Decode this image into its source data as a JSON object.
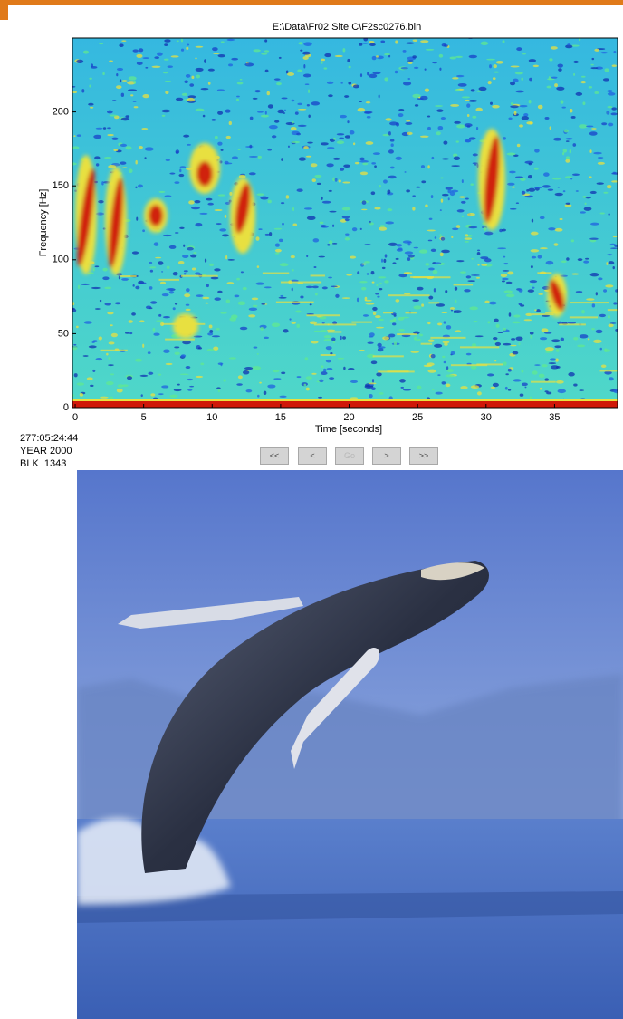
{
  "plot": {
    "title": "E:\\Data\\Fr02 Site C\\F2sc0276.bin",
    "xlabel": "Time [seconds]",
    "ylabel": "Frequency [Hz]",
    "xlim": [
      -0.2,
      39.6
    ],
    "ylim": [
      0,
      250
    ],
    "xticks": [
      0,
      5,
      10,
      15,
      20,
      25,
      30,
      35
    ],
    "yticks": [
      0,
      50,
      100,
      150,
      200
    ]
  },
  "info": [
    "277:05:24:44",
    "YEAR 2000",
    "BLK  1343"
  ],
  "buttons": [
    "<<",
    "<",
    "Go",
    ">",
    ">>"
  ]
}
